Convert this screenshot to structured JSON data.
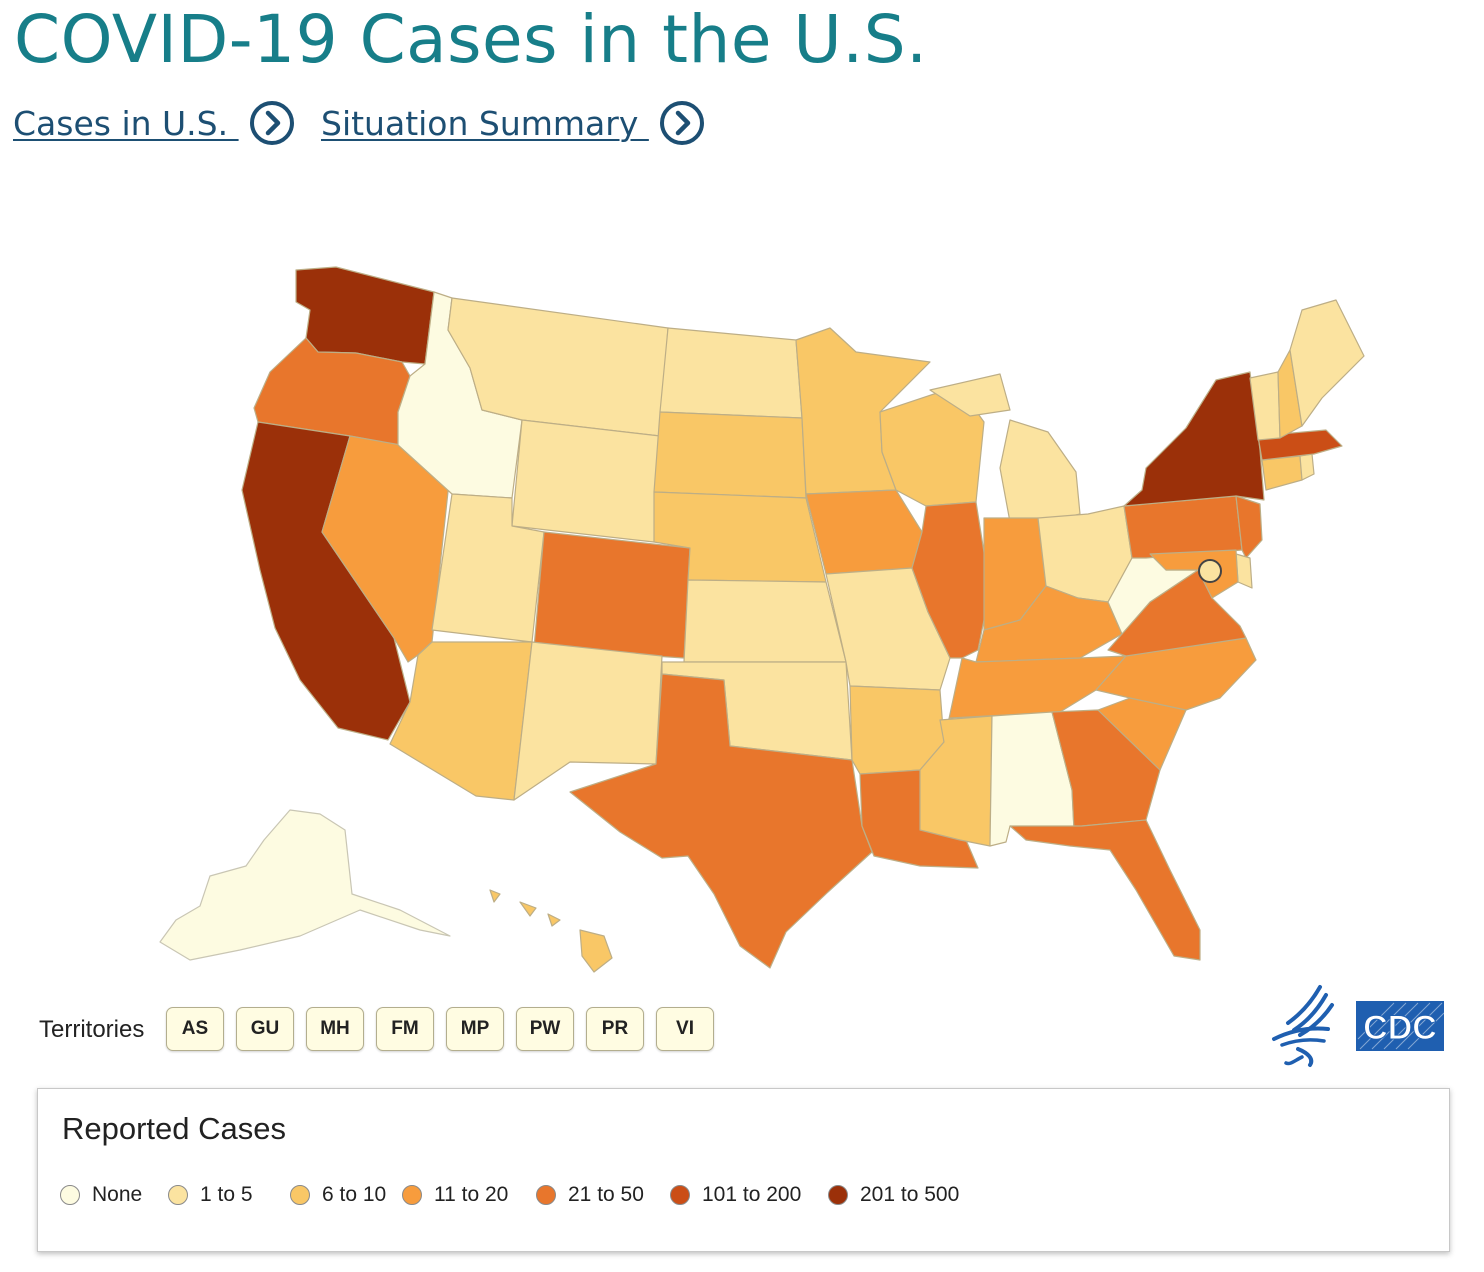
{
  "header": {
    "title": "COVID-19 Cases in the U.S.",
    "links": [
      {
        "label": "Cases in U.S. ",
        "icon": "chevron-right-circle-icon"
      },
      {
        "label": "Situation Summary ",
        "icon": "chevron-right-circle-icon"
      }
    ]
  },
  "map": {
    "region": "United States",
    "color_scale": {
      "none": "#fdfbe1",
      "1_to_5": "#fbe3a0",
      "6_to_10": "#f9c766",
      "11_to_20": "#f79c3d",
      "21_to_50": "#e8762c",
      "101_to_200": "#cb4e16",
      "201_to_500": "#9b3009"
    },
    "states": {
      "WA": "201 to 500",
      "CA": "201 to 500",
      "NY": "201 to 500",
      "MA": "101 to 200",
      "OR": "21 to 50",
      "CO": "21 to 50",
      "TX": "21 to 50",
      "IL": "21 to 50",
      "GA": "21 to 50",
      "FL": "21 to 50",
      "PA": "21 to 50",
      "NJ": "21 to 50",
      "VA": "21 to 50",
      "LA": "21 to 50",
      "NV": "11 to 20",
      "IA": "11 to 20",
      "IN": "11 to 20",
      "KY": "11 to 20",
      "TN": "11 to 20",
      "NC": "11 to 20",
      "SC": "11 to 20",
      "MD": "11 to 20",
      "AZ": "6 to 10",
      "SD": "6 to 10",
      "NE": "6 to 10",
      "MN": "6 to 10",
      "WI": "6 to 10",
      "AR": "6 to 10",
      "MS": "6 to 10",
      "NH": "6 to 10",
      "CT": "6 to 10",
      "HI": "6 to 10",
      "MT": "1 to 5",
      "ND": "1 to 5",
      "WY": "1 to 5",
      "UT": "1 to 5",
      "NM": "1 to 5",
      "KS": "1 to 5",
      "OK": "1 to 5",
      "MO": "1 to 5",
      "MI": "1 to 5",
      "OH": "1 to 5",
      "VT": "1 to 5",
      "ME": "1 to 5",
      "RI": "1 to 5",
      "DE": "1 to 5",
      "DC": "1 to 5",
      "ID": "None",
      "WV": "None",
      "AL": "None",
      "AK": "None"
    }
  },
  "territories": {
    "label": "Territories",
    "items": [
      "AS",
      "GU",
      "MH",
      "FM",
      "MP",
      "PW",
      "PR",
      "VI"
    ]
  },
  "legend": {
    "title": "Reported Cases",
    "items": [
      {
        "label": "None",
        "color": "#fdfbe1"
      },
      {
        "label": "1 to 5",
        "color": "#fbe3a0"
      },
      {
        "label": "6 to 10",
        "color": "#f9c766"
      },
      {
        "label": "11 to 20",
        "color": "#f79c3d"
      },
      {
        "label": "21 to 50",
        "color": "#e8762c"
      },
      {
        "label": "101 to 200",
        "color": "#cb4e16"
      },
      {
        "label": "201 to 500",
        "color": "#9b3009"
      }
    ]
  },
  "logo": {
    "icon": "hhs-eagle-icon",
    "text": "CDC",
    "color": "#1f5fb0"
  }
}
